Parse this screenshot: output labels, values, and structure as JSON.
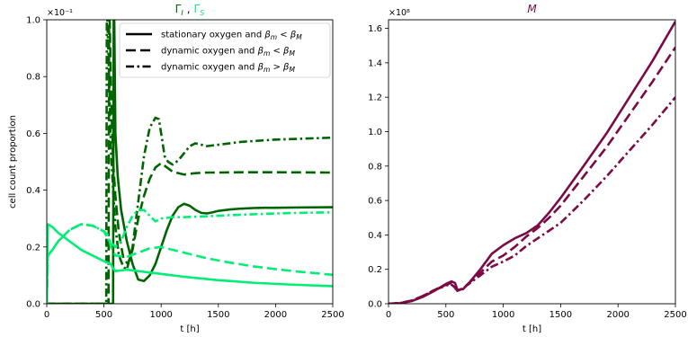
{
  "chart_data": [
    {
      "type": "line",
      "title_parts": [
        "Γ",
        "I",
        ",",
        "Γ",
        "S"
      ],
      "xlabel": "t [h]",
      "ylabel": "cell count proportion",
      "y_exponent": "×10⁻¹",
      "xlim": [
        0,
        2500
      ],
      "ylim": [
        0,
        1.0
      ],
      "x_ticks": [
        "0",
        "500",
        "1000",
        "1500",
        "2000",
        "2500"
      ],
      "y_ticks": [
        "0.0",
        "0.2",
        "0.4",
        "0.6",
        "0.8",
        "1.0"
      ],
      "colors": {
        "gamma_I": "#006400",
        "gamma_S": "#00ee76"
      },
      "legend": {
        "placement": "top-right",
        "entries": [
          {
            "label_main": "stationary oxygen and ",
            "label_math": "β",
            "sub1": "m",
            "rel": " < ",
            "math2": "β",
            "sub2": "M",
            "style": "solid"
          },
          {
            "label_main": "dynamic oxygen and ",
            "label_math": "β",
            "sub1": "m",
            "rel": " < ",
            "math2": "β",
            "sub2": "M",
            "style": "dashed"
          },
          {
            "label_main": "dynamic oxygen and ",
            "label_math": "β",
            "sub1": "m",
            "rel": " > ",
            "math2": "β",
            "sub2": "M",
            "style": "dashdot"
          }
        ]
      },
      "series": [
        {
          "group": "gamma_I",
          "style": "solid",
          "x": [
            0,
            580,
            585,
            590,
            600,
            620,
            650,
            700,
            750,
            800,
            850,
            900,
            950,
            1000,
            1050,
            1100,
            1150,
            1200,
            1250,
            1300,
            1350,
            1400,
            1450,
            1500,
            1600,
            1700,
            1800,
            1900,
            2000,
            2200,
            2500
          ],
          "y": [
            0,
            0,
            1.0,
            1.0,
            0.6,
            0.45,
            0.33,
            0.22,
            0.14,
            0.085,
            0.08,
            0.1,
            0.14,
            0.2,
            0.26,
            0.31,
            0.34,
            0.352,
            0.345,
            0.33,
            0.32,
            0.318,
            0.322,
            0.327,
            0.332,
            0.335,
            0.337,
            0.338,
            0.338,
            0.339,
            0.34
          ]
        },
        {
          "group": "gamma_I",
          "style": "dashed",
          "x": [
            0,
            540,
            545,
            550,
            565,
            580,
            600,
            630,
            670,
            710,
            750,
            800,
            850,
            900,
            950,
            1000,
            1050,
            1100,
            1200,
            1300,
            1400,
            1500,
            1700,
            2000,
            2500
          ],
          "y": [
            0,
            0,
            1.0,
            1.0,
            0.7,
            0.5,
            0.38,
            0.25,
            0.16,
            0.14,
            0.19,
            0.3,
            0.38,
            0.44,
            0.48,
            0.495,
            0.48,
            0.465,
            0.455,
            0.46,
            0.462,
            0.462,
            0.463,
            0.463,
            0.462
          ]
        },
        {
          "group": "gamma_I",
          "style": "dashdot",
          "x": [
            0,
            520,
            525,
            530,
            545,
            560,
            580,
            600,
            630,
            670,
            700,
            750,
            800,
            850,
            900,
            950,
            980,
            1000,
            1030,
            1060,
            1100,
            1150,
            1200,
            1250,
            1300,
            1350,
            1400,
            1500,
            1700,
            2000,
            2500
          ],
          "y": [
            0,
            0,
            1.0,
            1.0,
            0.8,
            0.55,
            0.4,
            0.27,
            0.17,
            0.13,
            0.12,
            0.2,
            0.36,
            0.52,
            0.62,
            0.655,
            0.65,
            0.6,
            0.52,
            0.5,
            0.49,
            0.505,
            0.53,
            0.555,
            0.565,
            0.56,
            0.555,
            0.56,
            0.57,
            0.578,
            0.585
          ]
        },
        {
          "group": "gamma_S",
          "style": "solid",
          "x": [
            0,
            10,
            50,
            100,
            200,
            300,
            400,
            500,
            560,
            580,
            600,
            700,
            800,
            1000,
            1200,
            1500,
            1800,
            2100,
            2500
          ],
          "y": [
            0,
            0.28,
            0.27,
            0.25,
            0.22,
            0.19,
            0.17,
            0.15,
            0.14,
            0.125,
            0.115,
            0.12,
            0.115,
            0.105,
            0.095,
            0.083,
            0.074,
            0.068,
            0.062
          ]
        },
        {
          "group": "gamma_S",
          "style": "dashed",
          "x": [
            0,
            10,
            50,
            100,
            200,
            300,
            400,
            500,
            540,
            560,
            600,
            700,
            800,
            900,
            1000,
            1100,
            1200,
            1400,
            1600,
            1800,
            2000,
            2200,
            2500
          ],
          "y": [
            0,
            0.17,
            0.19,
            0.22,
            0.26,
            0.28,
            0.275,
            0.255,
            0.24,
            0.2,
            0.17,
            0.165,
            0.18,
            0.195,
            0.2,
            0.19,
            0.18,
            0.16,
            0.145,
            0.132,
            0.122,
            0.113,
            0.102
          ]
        },
        {
          "group": "gamma_S",
          "style": "dashdot",
          "x": [
            0,
            10,
            50,
            100,
            200,
            300,
            400,
            500,
            520,
            550,
            600,
            650,
            700,
            750,
            800,
            850,
            900,
            950,
            1000,
            1100,
            1200,
            1400,
            1600,
            1800,
            2000,
            2200,
            2500
          ],
          "y": [
            0,
            0.17,
            0.19,
            0.22,
            0.26,
            0.28,
            0.275,
            0.255,
            0.24,
            0.22,
            0.2,
            0.22,
            0.27,
            0.31,
            0.33,
            0.33,
            0.31,
            0.29,
            0.3,
            0.305,
            0.305,
            0.308,
            0.312,
            0.315,
            0.318,
            0.32,
            0.322
          ]
        }
      ]
    },
    {
      "type": "line",
      "title": "M",
      "xlabel": "t [h]",
      "y_exponent": "×10⁸",
      "xlim": [
        0,
        2500
      ],
      "ylim": [
        0,
        1.65
      ],
      "x_ticks": [
        "0",
        "500",
        "1000",
        "1500",
        "2000",
        "2500"
      ],
      "y_ticks": [
        "0.0",
        "0.2",
        "0.4",
        "0.6",
        "0.8",
        "1.0",
        "1.2",
        "1.4",
        "1.6"
      ],
      "colors": {
        "M": "#7b0a45"
      },
      "series": [
        {
          "style": "solid",
          "x": [
            0,
            100,
            200,
            300,
            400,
            500,
            550,
            580,
            600,
            650,
            700,
            800,
            900,
            1000,
            1100,
            1200,
            1300,
            1400,
            1500,
            1700,
            1900,
            2100,
            2300,
            2500
          ],
          "y": [
            0,
            0.003,
            0.015,
            0.04,
            0.075,
            0.115,
            0.13,
            0.12,
            0.08,
            0.085,
            0.12,
            0.2,
            0.29,
            0.34,
            0.38,
            0.41,
            0.455,
            0.53,
            0.615,
            0.8,
            0.99,
            1.2,
            1.41,
            1.64
          ]
        },
        {
          "style": "dashed",
          "x": [
            0,
            100,
            200,
            300,
            400,
            500,
            540,
            570,
            600,
            650,
            700,
            800,
            900,
            1000,
            1100,
            1200,
            1300,
            1400,
            1500,
            1700,
            1900,
            2100,
            2300,
            2500
          ],
          "y": [
            0,
            0.004,
            0.018,
            0.045,
            0.08,
            0.11,
            0.12,
            0.105,
            0.075,
            0.09,
            0.12,
            0.18,
            0.245,
            0.28,
            0.33,
            0.39,
            0.44,
            0.5,
            0.57,
            0.74,
            0.91,
            1.1,
            1.29,
            1.49
          ]
        },
        {
          "style": "dashdot",
          "x": [
            0,
            100,
            200,
            300,
            400,
            500,
            540,
            570,
            600,
            650,
            700,
            800,
            900,
            1000,
            1100,
            1200,
            1300,
            1400,
            1500,
            1700,
            1900,
            2100,
            2300,
            2500
          ],
          "y": [
            0,
            0.004,
            0.018,
            0.045,
            0.08,
            0.105,
            0.115,
            0.1,
            0.075,
            0.09,
            0.115,
            0.165,
            0.215,
            0.245,
            0.28,
            0.335,
            0.38,
            0.425,
            0.47,
            0.6,
            0.74,
            0.89,
            1.04,
            1.2
          ]
        }
      ]
    }
  ]
}
